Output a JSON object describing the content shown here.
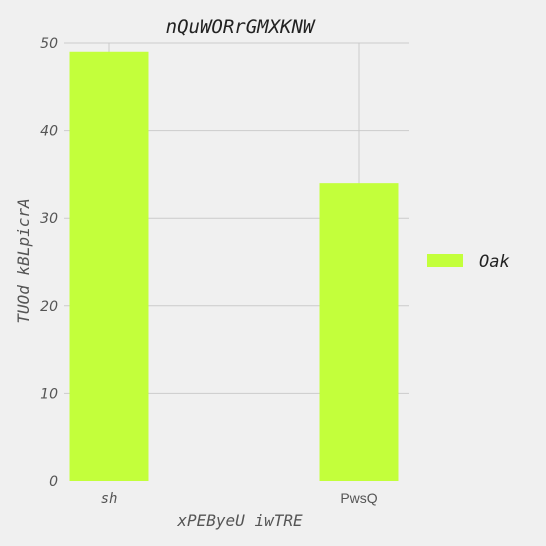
{
  "chart_data": {
    "type": "bar",
    "title": "nQuWORrGMXKNW",
    "xlabel": "xPEByeU iwTRE",
    "ylabel": "TUOd  kBLpicrA",
    "categories": [
      "sh",
      "PwsQ"
    ],
    "series": [
      {
        "name": "Oak",
        "values": [
          49,
          34
        ],
        "color": "#c3ff3b"
      }
    ],
    "ylim": [
      0,
      50
    ],
    "yticks": [
      0,
      10,
      20,
      30,
      40,
      50
    ],
    "grid": true,
    "legend": "right"
  }
}
